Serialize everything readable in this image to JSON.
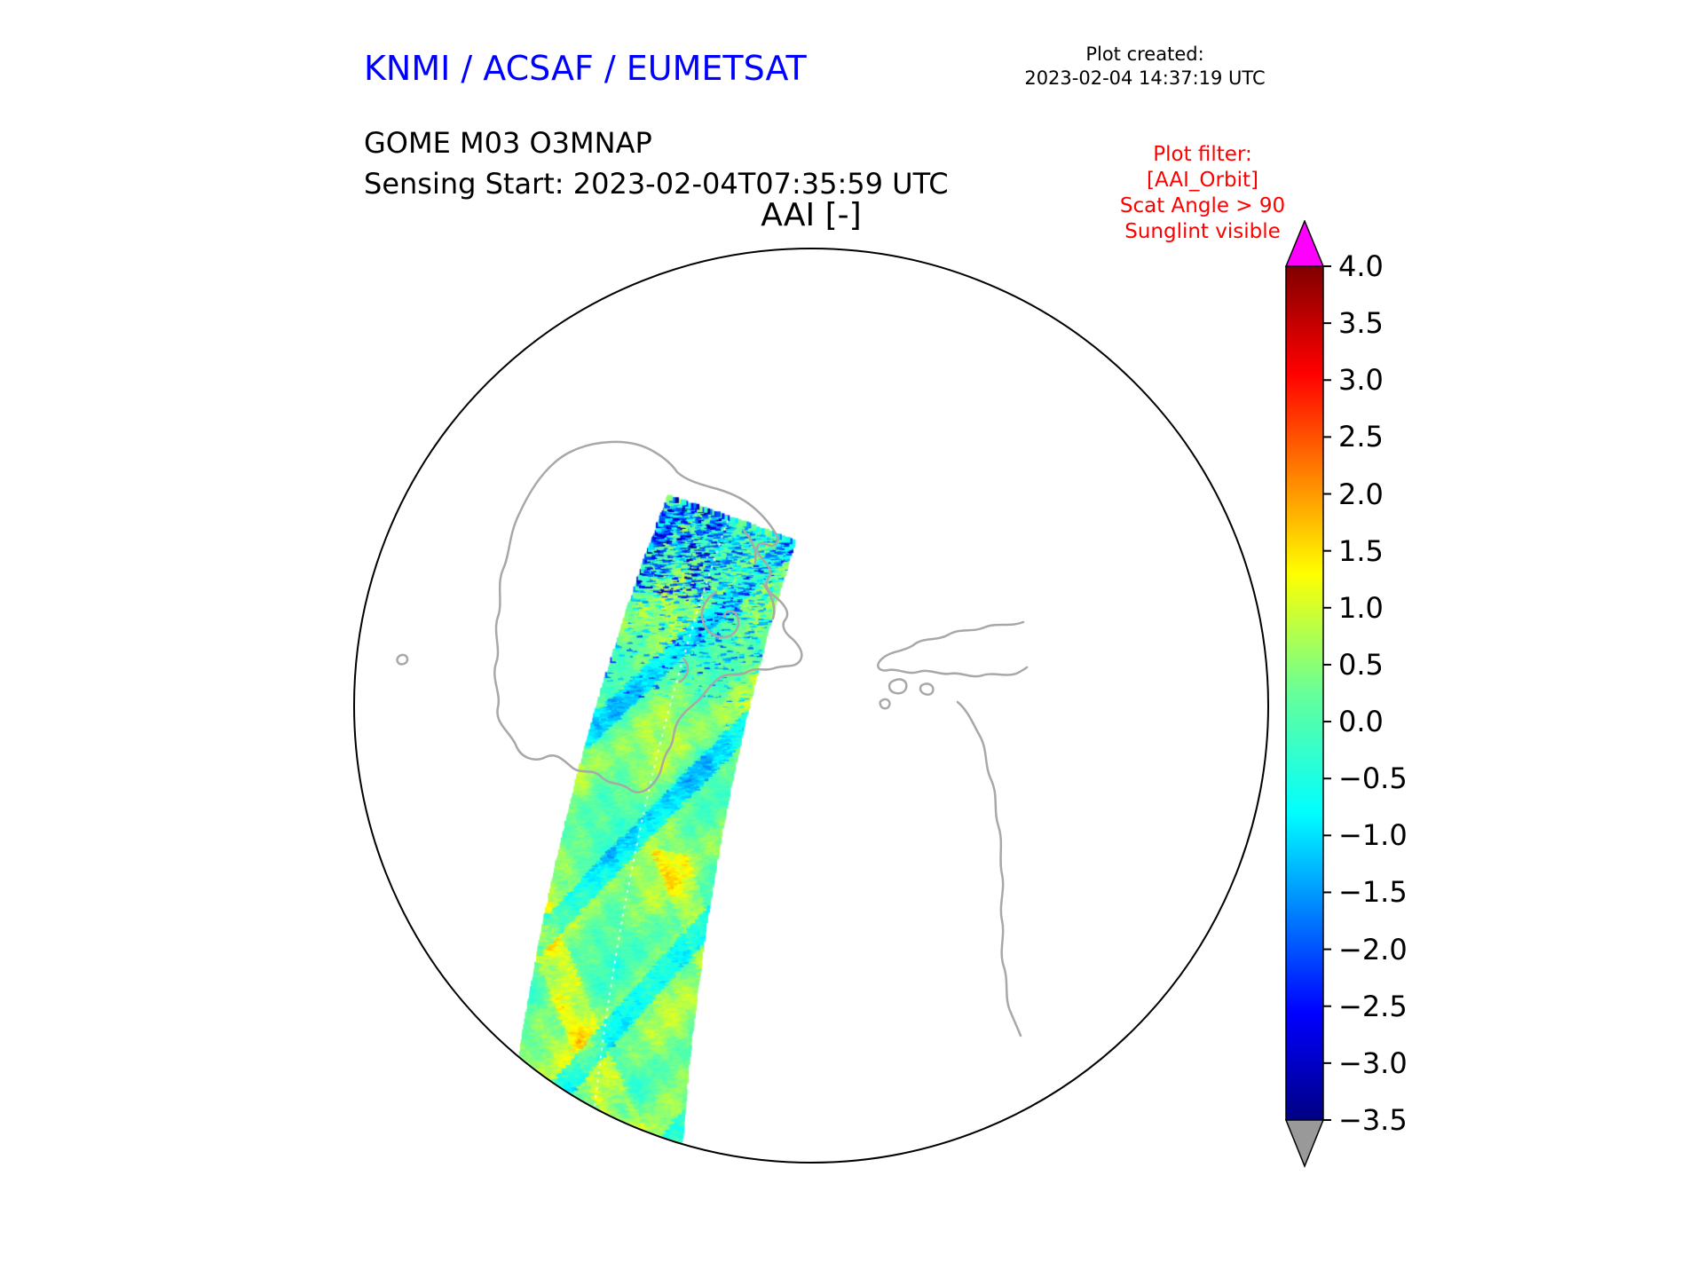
{
  "header": {
    "agency_title": "KNMI / ACSAF / EUMETSAT",
    "plot_created_label": "Plot created:",
    "plot_created_time": "2023-02-04 14:37:19 UTC",
    "product_line1": "GOME M03 O3MNAP",
    "product_line2": "Sensing Start: 2023-02-04T07:35:59 UTC"
  },
  "filter_note": {
    "color": "#ff0000",
    "lines": [
      "Plot filter:",
      "[AAI_Orbit]",
      "Scat Angle > 90",
      "Sunglint visible"
    ]
  },
  "chart_data": {
    "type": "heatmap",
    "title": "AAI [-]",
    "subtitle_lines": [
      "GOME M03 O3MNAP",
      "Sensing Start: 2023-02-04T07:35:59 UTC"
    ],
    "projection": "south-polar stereographic disc",
    "map": {
      "coastline_color": "#a8a8a8",
      "outline_color": "#000000",
      "background": "#ffffff"
    },
    "colorbar": {
      "orientation": "vertical",
      "side": "right",
      "vmin": -3.5,
      "vmax": 4.0,
      "tick_step": 0.5,
      "colormap": "jet",
      "colormap_stops": [
        [
          0.0,
          "#000083"
        ],
        [
          0.125,
          "#0000ff"
        ],
        [
          0.36,
          "#00ffff"
        ],
        [
          0.5,
          "#66ff99"
        ],
        [
          0.64,
          "#ffff00"
        ],
        [
          0.875,
          "#ff0000"
        ],
        [
          1.0,
          "#800000"
        ]
      ],
      "over_color": "#ff00ff",
      "under_color": "#999999",
      "ticks": [
        {
          "value": 4.0,
          "label": "4.0"
        },
        {
          "value": 3.5,
          "label": "3.5"
        },
        {
          "value": 3.0,
          "label": "3.0"
        },
        {
          "value": 2.5,
          "label": "2.5"
        },
        {
          "value": 2.0,
          "label": "2.0"
        },
        {
          "value": 1.5,
          "label": "1.5"
        },
        {
          "value": 1.0,
          "label": "1.0"
        },
        {
          "value": 0.5,
          "label": "0.5"
        },
        {
          "value": 0.0,
          "label": "0.0"
        },
        {
          "value": -0.5,
          "label": "−0.5"
        },
        {
          "value": -1.0,
          "label": "−1.0"
        },
        {
          "value": -1.5,
          "label": "−1.5"
        },
        {
          "value": -2.0,
          "label": "−2.0"
        },
        {
          "value": -2.5,
          "label": "−2.5"
        },
        {
          "value": -3.0,
          "label": "−3.0"
        },
        {
          "value": -3.5,
          "label": "−3.5"
        }
      ]
    },
    "swath": {
      "description": "Single orbit swath crossing the polar disc from the bottom edge up to the right of centre, ending with a slanted cut north of the Antarctic peninsula",
      "typical_value_range": [
        -1.5,
        1.2
      ],
      "dominant_value": 0.4,
      "features": [
        "mostly green values around 0 to +0.8",
        "yellow patches near +1.0 in the lower half",
        "cyan streaks near -0.5 to -1.5",
        "dense cyan/blue speckles down to -3 near the top end of the swath",
        "thin white dashed nadir line running along the track"
      ]
    }
  }
}
